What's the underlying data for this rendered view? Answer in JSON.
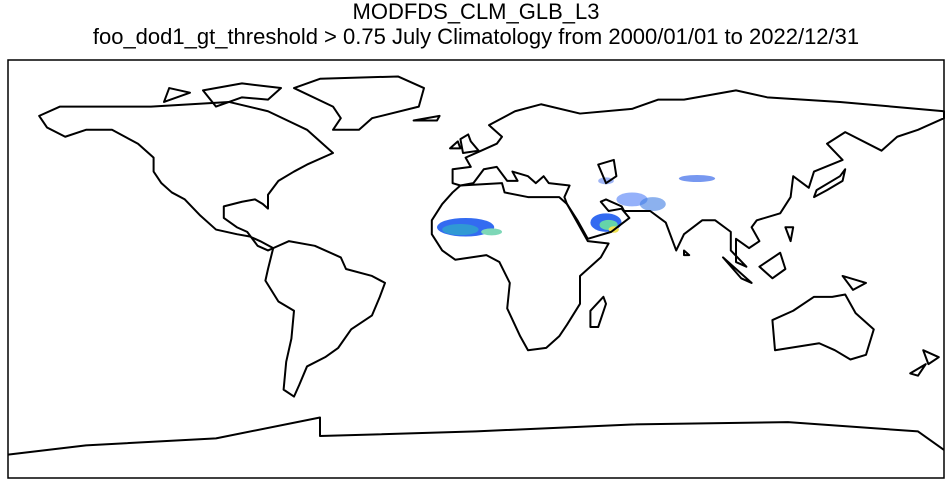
{
  "title": "MODFDS_CLM_GLB_L3",
  "subtitle": "foo_dod1_gt_threshold > 0.75 July Climatology from 2000/01/01 to 2022/12/31"
}
